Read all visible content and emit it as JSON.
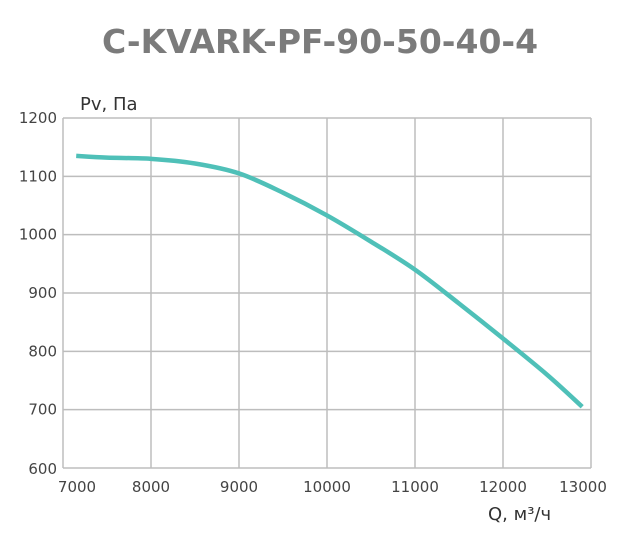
{
  "chart_data": {
    "type": "line",
    "title": "C-KVARK-PF-90-50-40-4",
    "xlabel": "Q, м³/ч",
    "ylabel": "Pv, Па",
    "xlim": [
      7000,
      13000
    ],
    "ylim": [
      600,
      1200
    ],
    "grid": true,
    "x_ticks": [
      "7000",
      "8000",
      "9000",
      "10000",
      "11000",
      "12000",
      "13000"
    ],
    "y_ticks": [
      "600",
      "700",
      "800",
      "900",
      "1000",
      "1100",
      "1200"
    ],
    "series": [
      {
        "name": "Pv",
        "color": "#4fc0b8",
        "x": [
          7150,
          7500,
          8000,
          8500,
          9000,
          9500,
          10000,
          10500,
          11000,
          11500,
          12000,
          12500,
          12900
        ],
        "y": [
          1135,
          1132,
          1130,
          1122,
          1105,
          1072,
          1033,
          988,
          940,
          882,
          822,
          760,
          705
        ]
      }
    ]
  }
}
